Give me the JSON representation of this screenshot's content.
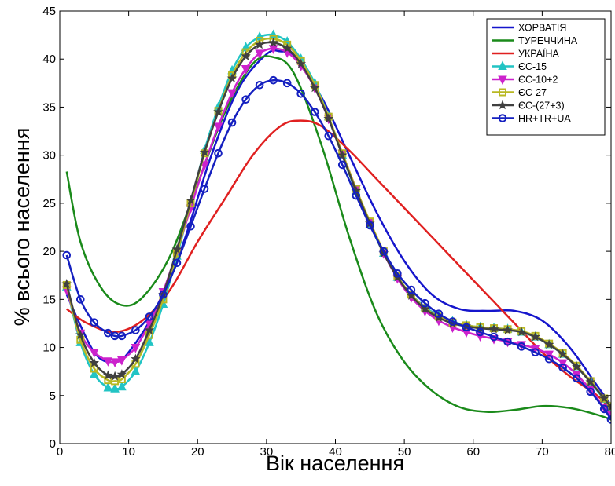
{
  "chart_data": {
    "type": "line",
    "title": "",
    "xlabel": "Вік населення",
    "ylabel": "% всього населення",
    "xlim": [
      0,
      80
    ],
    "ylim": [
      0,
      45
    ],
    "xticks": [
      0,
      10,
      20,
      30,
      40,
      50,
      60,
      70,
      80
    ],
    "yticks": [
      0,
      5,
      10,
      15,
      20,
      25,
      30,
      35,
      40,
      45
    ],
    "xtick_labels": [
      "0",
      "10",
      "20",
      "30",
      "40",
      "50",
      "60",
      "70",
      "80"
    ],
    "ytick_labels": [
      "0",
      "5",
      "10",
      "15",
      "20",
      "25",
      "30",
      "35",
      "40",
      "45"
    ],
    "grid": false,
    "legend_position": "top-right",
    "series": [
      {
        "name": "ХОРВАТІЯ",
        "color": "#1515cc",
        "marker": "none",
        "x": [
          1,
          5,
          8,
          10,
          14,
          18,
          22,
          26,
          30,
          32,
          34,
          38,
          42,
          46,
          50,
          54,
          58,
          62,
          66,
          70,
          74,
          78,
          80
        ],
        "y": [
          15.5,
          9.5,
          8.5,
          9.5,
          14,
          21,
          30,
          37,
          40.5,
          40.8,
          40.2,
          36,
          30,
          24,
          19,
          15.5,
          14,
          13.8,
          13.8,
          12.8,
          10,
          6,
          4
        ]
      },
      {
        "name": "ТУРЕЧЧИНА",
        "color": "#1a8a1a",
        "marker": "none",
        "x": [
          1,
          3,
          6,
          9,
          12,
          16,
          20,
          24,
          28,
          31,
          34,
          38,
          42,
          46,
          50,
          54,
          58,
          62,
          66,
          70,
          74,
          78,
          80
        ],
        "y": [
          28.3,
          21,
          16.2,
          14.4,
          15.2,
          19.5,
          27,
          34.5,
          39.5,
          40.2,
          38.5,
          31,
          21.5,
          13.5,
          8.5,
          5.5,
          3.8,
          3.3,
          3.5,
          3.9,
          3.7,
          3,
          2.5
        ]
      },
      {
        "name": "УКРАЇНА",
        "color": "#e02020",
        "marker": "none",
        "x": [
          1,
          4,
          8,
          12,
          16,
          20,
          24,
          28,
          32,
          35,
          38,
          42,
          46,
          50,
          54,
          58,
          62,
          66,
          70,
          74,
          78,
          80
        ],
        "y": [
          14,
          12.5,
          11.6,
          12.8,
          16,
          21,
          25.5,
          30,
          33,
          33.6,
          33,
          30.5,
          27.5,
          24.5,
          21.5,
          18.5,
          15.5,
          12.5,
          9.5,
          7,
          5,
          3.5
        ]
      },
      {
        "name": "ЄС-15",
        "color": "#22c4c4",
        "marker": "triangle-up",
        "x": [
          1,
          3,
          5,
          7,
          8,
          9,
          11,
          13,
          15,
          17,
          19,
          21,
          23,
          25,
          27,
          29,
          31,
          33,
          35,
          37,
          39,
          41,
          43,
          45,
          47,
          49,
          51,
          53,
          55,
          57,
          59,
          61,
          63,
          65,
          67,
          69,
          71,
          73,
          75,
          77,
          79,
          80
        ],
        "y": [
          16.3,
          10.5,
          7.2,
          5.8,
          5.7,
          5.9,
          7.5,
          10.5,
          14.5,
          19.5,
          25,
          30.5,
          35,
          38.8,
          41.2,
          42.3,
          42.5,
          41.8,
          40,
          37.5,
          34,
          30,
          26.2,
          22.8,
          19.8,
          17.3,
          15.5,
          14.2,
          13.3,
          12.7,
          12.3,
          12.1,
          12,
          11.9,
          11.6,
          11.1,
          10.3,
          9.3,
          8,
          6.4,
          4.6,
          3.8
        ]
      },
      {
        "name": "ЄС-10+2",
        "color": "#cc22cc",
        "marker": "triangle-down",
        "x": [
          1,
          3,
          5,
          7,
          8,
          9,
          11,
          13,
          15,
          17,
          19,
          21,
          23,
          25,
          27,
          29,
          31,
          33,
          35,
          37,
          39,
          41,
          43,
          45,
          47,
          49,
          51,
          53,
          55,
          57,
          59,
          61,
          63,
          65,
          67,
          69,
          71,
          73,
          75,
          77,
          79,
          80
        ],
        "y": [
          16,
          11.5,
          9.5,
          8.6,
          8.5,
          8.7,
          10,
          12.5,
          15.8,
          20,
          24.5,
          29,
          33,
          36.5,
          39,
          40.6,
          41.1,
          40.7,
          39.3,
          37,
          33.8,
          30.2,
          26.5,
          23,
          19.8,
          17.2,
          15.2,
          13.8,
          12.8,
          12.1,
          11.6,
          11.2,
          10.9,
          10.6,
          10.3,
          9.9,
          9.3,
          8.4,
          7.2,
          5.6,
          3.8,
          3
        ]
      },
      {
        "name": "ЄС-27",
        "color": "#b8b822",
        "marker": "square",
        "x": [
          1,
          3,
          5,
          7,
          8,
          9,
          11,
          13,
          15,
          17,
          19,
          21,
          23,
          25,
          27,
          29,
          31,
          33,
          35,
          37,
          39,
          41,
          43,
          45,
          47,
          49,
          51,
          53,
          55,
          57,
          59,
          61,
          63,
          65,
          67,
          69,
          71,
          73,
          75,
          77,
          79,
          80
        ],
        "y": [
          16.5,
          10.8,
          7.8,
          6.6,
          6.5,
          6.7,
          8.3,
          11.3,
          15,
          19.8,
          25,
          30.2,
          34.6,
          38.3,
          40.7,
          41.9,
          42.1,
          41.5,
          39.8,
          37.3,
          34,
          30.2,
          26.5,
          23.1,
          20,
          17.4,
          15.5,
          14.1,
          13.2,
          12.6,
          12.3,
          12.1,
          12,
          11.9,
          11.7,
          11.2,
          10.4,
          9.4,
          8.1,
          6.5,
          4.7,
          3.9
        ]
      },
      {
        "name": "ЄС-(27+3)",
        "color": "#404040",
        "marker": "star",
        "x": [
          1,
          3,
          5,
          7,
          8,
          9,
          11,
          13,
          15,
          17,
          19,
          21,
          23,
          25,
          27,
          29,
          31,
          33,
          35,
          37,
          39,
          41,
          43,
          45,
          47,
          49,
          51,
          53,
          55,
          57,
          59,
          61,
          63,
          65,
          67,
          69,
          71,
          73,
          75,
          77,
          79,
          80
        ],
        "y": [
          16.6,
          11.3,
          8.4,
          7.1,
          7,
          7.2,
          8.8,
          11.8,
          15.5,
          20.2,
          25.3,
          30.3,
          34.5,
          38,
          40.3,
          41.5,
          41.7,
          41.1,
          39.5,
          37,
          33.8,
          30,
          26.3,
          22.9,
          19.8,
          17.3,
          15.4,
          14,
          13.1,
          12.5,
          12.2,
          12,
          11.9,
          11.8,
          11.6,
          11.1,
          10.3,
          9.3,
          8,
          6.4,
          4.7,
          3.8
        ]
      },
      {
        "name": "HR+TR+UA",
        "color": "#1520c0",
        "marker": "circle",
        "x": [
          1,
          3,
          5,
          7,
          8,
          9,
          11,
          13,
          15,
          17,
          19,
          21,
          23,
          25,
          27,
          29,
          31,
          33,
          35,
          37,
          39,
          41,
          43,
          45,
          47,
          49,
          51,
          53,
          55,
          57,
          59,
          61,
          63,
          65,
          67,
          69,
          71,
          73,
          75,
          77,
          79,
          80
        ],
        "y": [
          19.6,
          15,
          12.6,
          11.5,
          11.2,
          11.2,
          11.8,
          13.2,
          15.5,
          18.8,
          22.6,
          26.5,
          30.2,
          33.4,
          35.8,
          37.3,
          37.8,
          37.5,
          36.4,
          34.5,
          32,
          29,
          25.8,
          22.7,
          20,
          17.7,
          16,
          14.6,
          13.5,
          12.7,
          12.1,
          11.6,
          11.1,
          10.6,
          10.1,
          9.5,
          8.8,
          7.9,
          6.8,
          5.4,
          3.6,
          2.5
        ]
      }
    ]
  }
}
